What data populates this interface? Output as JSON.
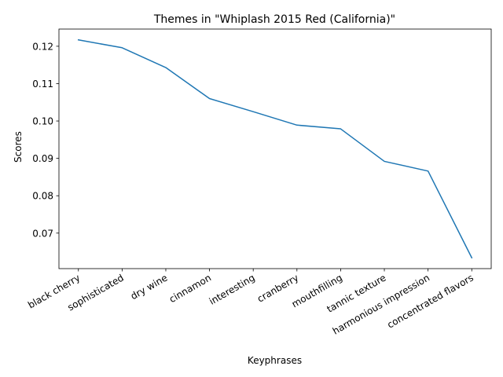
{
  "chart_data": {
    "type": "line",
    "title": "Themes in \"Whiplash 2015 Red (California)\"",
    "xlabel": "Keyphrases",
    "ylabel": "Scores",
    "categories": [
      "black cherry",
      "sophisticated",
      "dry wine",
      "cinnamon",
      "interesting",
      "cranberry",
      "mouthfilling",
      "tannic texture",
      "harmonious impression",
      "concentrated flavors"
    ],
    "values": [
      0.1217,
      0.1196,
      0.1143,
      0.106,
      0.1025,
      0.0989,
      0.0979,
      0.0892,
      0.0866,
      0.0634
    ],
    "ylim": [
      0.0605,
      0.1246
    ],
    "yticks": [
      0.07,
      0.08,
      0.09,
      0.1,
      0.11,
      0.12
    ],
    "ytick_labels": [
      "0.07",
      "0.08",
      "0.09",
      "0.10",
      "0.11",
      "0.12"
    ],
    "grid": false,
    "line_color": "#1f77b4"
  }
}
